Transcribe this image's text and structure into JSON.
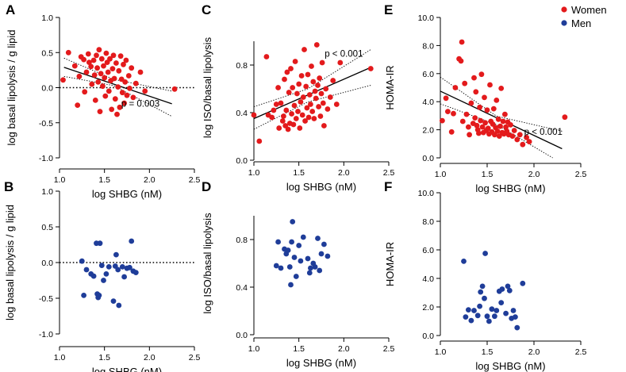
{
  "legend": {
    "items": [
      {
        "label": "Women",
        "color": "#e31a1c"
      },
      {
        "label": "Men",
        "color": "#1f3d99"
      }
    ],
    "position": "top-right"
  },
  "chart_data": [
    {
      "id": "A",
      "type": "scatter",
      "panel_label": "A",
      "series": "Women",
      "xlabel": "log SHBG (nM)",
      "ylabel": "log basal lipolysis / g lipid",
      "xlim": [
        1.0,
        2.5
      ],
      "ylim": [
        -1.0,
        1.0
      ],
      "xticks": [
        "1.0",
        "1.5",
        "2.0",
        "2.5"
      ],
      "yticks": [
        "-1.0",
        "-0.5",
        "0.0",
        "0.5",
        "1.0"
      ],
      "reference_line_y": 0.0,
      "regression": {
        "x1": 1.05,
        "y1": 0.29,
        "x2": 2.25,
        "y2": -0.23,
        "ci_upper": [
          [
            1.05,
            0.42
          ],
          [
            1.6,
            0.12
          ],
          [
            2.25,
            -0.05
          ]
        ],
        "ci_lower": [
          [
            1.05,
            0.16
          ],
          [
            1.6,
            0.03
          ],
          [
            2.25,
            -0.41
          ]
        ]
      },
      "annotation": {
        "text": "p = 0.003",
        "x": 1.9,
        "y": -0.27
      },
      "points": [
        [
          1.04,
          0.11
        ],
        [
          1.1,
          0.5
        ],
        [
          1.17,
          0.31
        ],
        [
          1.2,
          -0.25
        ],
        [
          1.22,
          0.16
        ],
        [
          1.24,
          0.44
        ],
        [
          1.27,
          0.4
        ],
        [
          1.28,
          -0.06
        ],
        [
          1.3,
          0.22
        ],
        [
          1.32,
          0.48
        ],
        [
          1.33,
          0.36
        ],
        [
          1.35,
          0.3
        ],
        [
          1.36,
          0.05
        ],
        [
          1.38,
          0.39
        ],
        [
          1.39,
          0.18
        ],
        [
          1.4,
          -0.18
        ],
        [
          1.41,
          0.46
        ],
        [
          1.42,
          0.28
        ],
        [
          1.43,
          0.08
        ],
        [
          1.44,
          0.54
        ],
        [
          1.45,
          -0.34
        ],
        [
          1.46,
          0.2
        ],
        [
          1.47,
          0.41
        ],
        [
          1.48,
          0.02
        ],
        [
          1.49,
          0.31
        ],
        [
          1.5,
          0.14
        ],
        [
          1.51,
          -0.12
        ],
        [
          1.52,
          0.49
        ],
        [
          1.53,
          0.36
        ],
        [
          1.54,
          0.22
        ],
        [
          1.55,
          -0.05
        ],
        [
          1.56,
          0.41
        ],
        [
          1.57,
          0.1
        ],
        [
          1.58,
          -0.31
        ],
        [
          1.59,
          0.27
        ],
        [
          1.6,
          0.46
        ],
        [
          1.61,
          0.13
        ],
        [
          1.62,
          -0.16
        ],
        [
          1.63,
          0.35
        ],
        [
          1.64,
          -0.38
        ],
        [
          1.65,
          0.01
        ],
        [
          1.66,
          0.24
        ],
        [
          1.67,
          -0.28
        ],
        [
          1.68,
          0.45
        ],
        [
          1.69,
          0.12
        ],
        [
          1.7,
          -0.07
        ],
        [
          1.71,
          0.33
        ],
        [
          1.72,
          -0.22
        ],
        [
          1.73,
          0.08
        ],
        [
          1.74,
          0.39
        ],
        [
          1.75,
          -0.11
        ],
        [
          1.77,
          0.17
        ],
        [
          1.78,
          -0.01
        ],
        [
          1.8,
          0.28
        ],
        [
          1.82,
          -0.14
        ],
        [
          1.85,
          0.06
        ],
        [
          1.9,
          0.22
        ],
        [
          1.95,
          -0.05
        ],
        [
          2.28,
          -0.02
        ]
      ]
    },
    {
      "id": "B",
      "type": "scatter",
      "panel_label": "B",
      "series": "Men",
      "xlabel": "log SHBG (nM)",
      "ylabel": "log basal lipolysis / g lipid",
      "xlim": [
        1.0,
        2.5
      ],
      "ylim": [
        -1.0,
        1.0
      ],
      "xticks": [
        "1.0",
        "1.5",
        "2.0",
        "2.5"
      ],
      "yticks": [
        "-1.0",
        "-0.5",
        "0.0",
        "0.5",
        "1.0"
      ],
      "reference_line_y": 0.0,
      "points": [
        [
          1.25,
          0.02
        ],
        [
          1.27,
          -0.46
        ],
        [
          1.3,
          -0.1
        ],
        [
          1.35,
          -0.16
        ],
        [
          1.38,
          -0.19
        ],
        [
          1.41,
          0.27
        ],
        [
          1.42,
          -0.44
        ],
        [
          1.43,
          -0.49
        ],
        [
          1.44,
          -0.46
        ],
        [
          1.45,
          0.27
        ],
        [
          1.47,
          -0.04
        ],
        [
          1.49,
          -0.25
        ],
        [
          1.52,
          -0.16
        ],
        [
          1.55,
          -0.06
        ],
        [
          1.6,
          -0.54
        ],
        [
          1.62,
          -0.05
        ],
        [
          1.63,
          0.11
        ],
        [
          1.65,
          -0.1
        ],
        [
          1.66,
          -0.6
        ],
        [
          1.7,
          -0.06
        ],
        [
          1.72,
          -0.2
        ],
        [
          1.75,
          -0.08
        ],
        [
          1.78,
          -0.07
        ],
        [
          1.8,
          0.3
        ],
        [
          1.82,
          -0.12
        ],
        [
          1.85,
          -0.14
        ]
      ]
    },
    {
      "id": "C",
      "type": "scatter",
      "panel_label": "C",
      "series": "Women",
      "xlabel": "log SHBG (nM)",
      "ylabel": "log ISO/basal lipolysis",
      "xlim": [
        1.0,
        2.5
      ],
      "ylim": [
        0.0,
        1.0
      ],
      "xticks": [
        "1.0",
        "1.5",
        "2.0",
        "2.5"
      ],
      "yticks": [
        "0.0",
        "0.4",
        "0.8"
      ],
      "regression": {
        "x1": 1.0,
        "y1": 0.35,
        "x2": 2.3,
        "y2": 0.78,
        "ci_upper": [
          [
            1.0,
            0.45
          ],
          [
            1.6,
            0.6
          ],
          [
            2.3,
            0.93
          ]
        ],
        "ci_lower": [
          [
            1.0,
            0.26
          ],
          [
            1.6,
            0.49
          ],
          [
            2.3,
            0.63
          ]
        ]
      },
      "annotation": {
        "text": "p < 0.001",
        "x": 2.0,
        "y": 0.87
      },
      "points": [
        [
          1.0,
          0.38
        ],
        [
          1.06,
          0.16
        ],
        [
          1.14,
          0.87
        ],
        [
          1.16,
          0.38
        ],
        [
          1.2,
          0.36
        ],
        [
          1.22,
          0.42
        ],
        [
          1.25,
          0.47
        ],
        [
          1.27,
          0.61
        ],
        [
          1.28,
          0.27
        ],
        [
          1.3,
          0.48
        ],
        [
          1.32,
          0.33
        ],
        [
          1.33,
          0.37
        ],
        [
          1.34,
          0.68
        ],
        [
          1.35,
          0.29
        ],
        [
          1.36,
          0.42
        ],
        [
          1.37,
          0.74
        ],
        [
          1.38,
          0.26
        ],
        [
          1.39,
          0.57
        ],
        [
          1.4,
          0.31
        ],
        [
          1.41,
          0.77
        ],
        [
          1.42,
          0.39
        ],
        [
          1.43,
          0.61
        ],
        [
          1.44,
          0.3
        ],
        [
          1.45,
          0.46
        ],
        [
          1.46,
          0.83
        ],
        [
          1.47,
          0.35
        ],
        [
          1.48,
          0.56
        ],
        [
          1.49,
          0.41
        ],
        [
          1.5,
          0.64
        ],
        [
          1.51,
          0.27
        ],
        [
          1.52,
          0.49
        ],
        [
          1.53,
          0.71
        ],
        [
          1.54,
          0.38
        ],
        [
          1.55,
          0.53
        ],
        [
          1.56,
          0.93
        ],
        [
          1.57,
          0.33
        ],
        [
          1.58,
          0.62
        ],
        [
          1.59,
          0.44
        ],
        [
          1.6,
          0.72
        ],
        [
          1.61,
          0.36
        ],
        [
          1.62,
          0.55
        ],
        [
          1.63,
          0.47
        ],
        [
          1.64,
          0.79
        ],
        [
          1.65,
          0.41
        ],
        [
          1.66,
          0.66
        ],
        [
          1.67,
          0.35
        ],
        [
          1.68,
          0.58
        ],
        [
          1.69,
          0.52
        ],
        [
          1.7,
          0.97
        ],
        [
          1.71,
          0.63
        ],
        [
          1.72,
          0.45
        ],
        [
          1.73,
          0.69
        ],
        [
          1.74,
          0.37
        ],
        [
          1.75,
          0.56
        ],
        [
          1.76,
          0.82
        ],
        [
          1.77,
          0.48
        ],
        [
          1.78,
          0.29
        ],
        [
          1.8,
          0.6
        ],
        [
          1.82,
          0.43
        ],
        [
          1.85,
          0.53
        ],
        [
          1.88,
          0.67
        ],
        [
          1.92,
          0.47
        ],
        [
          1.96,
          0.82
        ],
        [
          2.3,
          0.77
        ]
      ]
    },
    {
      "id": "D",
      "type": "scatter",
      "panel_label": "D",
      "series": "Men",
      "xlabel": "log SHBG (nM)",
      "ylabel": "log ISO/basal lipolysis",
      "xlim": [
        1.0,
        2.5
      ],
      "ylim": [
        0.0,
        1.0
      ],
      "xticks": [
        "1.0",
        "1.5",
        "2.0",
        "2.5"
      ],
      "yticks": [
        "0.0",
        "0.4",
        "0.8"
      ],
      "points": [
        [
          1.25,
          0.58
        ],
        [
          1.27,
          0.78
        ],
        [
          1.3,
          0.56
        ],
        [
          1.34,
          0.72
        ],
        [
          1.36,
          0.68
        ],
        [
          1.38,
          0.71
        ],
        [
          1.4,
          0.57
        ],
        [
          1.41,
          0.42
        ],
        [
          1.42,
          0.78
        ],
        [
          1.43,
          0.95
        ],
        [
          1.45,
          0.65
        ],
        [
          1.47,
          0.49
        ],
        [
          1.5,
          0.75
        ],
        [
          1.52,
          0.62
        ],
        [
          1.55,
          0.82
        ],
        [
          1.6,
          0.64
        ],
        [
          1.62,
          0.52
        ],
        [
          1.63,
          0.56
        ],
        [
          1.66,
          0.6
        ],
        [
          1.68,
          0.57
        ],
        [
          1.71,
          0.81
        ],
        [
          1.73,
          0.54
        ],
        [
          1.75,
          0.68
        ],
        [
          1.78,
          0.76
        ],
        [
          1.82,
          0.66
        ]
      ]
    },
    {
      "id": "E",
      "type": "scatter",
      "panel_label": "E",
      "series": "Women",
      "xlabel": "log SHBG (nM)",
      "ylabel": "HOMA-IR",
      "xlim": [
        1.0,
        2.5
      ],
      "ylim": [
        0.0,
        10.0
      ],
      "xticks": [
        "1.0",
        "1.5",
        "2.0",
        "2.5"
      ],
      "yticks": [
        "0.0",
        "2.0",
        "4.0",
        "6.0",
        "8.0",
        "10.0"
      ],
      "regression": {
        "x1": 1.0,
        "y1": 4.75,
        "x2": 2.3,
        "y2": 0.65,
        "ci_upper": [
          [
            1.0,
            5.75
          ],
          [
            1.6,
            2.97
          ],
          [
            2.3,
            1.9
          ]
        ],
        "ci_lower": [
          [
            1.0,
            3.85
          ],
          [
            1.6,
            2.37
          ],
          [
            2.2,
            0.0
          ]
        ]
      },
      "annotation": {
        "text": "p < 0.001",
        "x": 2.1,
        "y": 1.65
      },
      "points": [
        [
          1.02,
          2.65
        ],
        [
          1.06,
          4.25
        ],
        [
          1.08,
          3.3
        ],
        [
          1.12,
          1.85
        ],
        [
          1.14,
          3.15
        ],
        [
          1.16,
          5.0
        ],
        [
          1.2,
          7.05
        ],
        [
          1.22,
          6.9
        ],
        [
          1.23,
          8.25
        ],
        [
          1.24,
          2.6
        ],
        [
          1.26,
          5.3
        ],
        [
          1.28,
          3.1
        ],
        [
          1.3,
          2.2
        ],
        [
          1.31,
          1.65
        ],
        [
          1.33,
          3.9
        ],
        [
          1.35,
          2.45
        ],
        [
          1.36,
          5.7
        ],
        [
          1.37,
          2.85
        ],
        [
          1.38,
          4.7
        ],
        [
          1.39,
          2.3
        ],
        [
          1.4,
          2.0
        ],
        [
          1.41,
          1.75
        ],
        [
          1.42,
          3.6
        ],
        [
          1.43,
          2.65
        ],
        [
          1.44,
          5.95
        ],
        [
          1.45,
          2.2
        ],
        [
          1.46,
          1.8
        ],
        [
          1.47,
          4.3
        ],
        [
          1.48,
          2.5
        ],
        [
          1.49,
          1.95
        ],
        [
          1.5,
          3.4
        ],
        [
          1.51,
          2.1
        ],
        [
          1.52,
          1.7
        ],
        [
          1.53,
          5.2
        ],
        [
          1.54,
          2.6
        ],
        [
          1.55,
          1.85
        ],
        [
          1.56,
          2.4
        ],
        [
          1.57,
          3.5
        ],
        [
          1.58,
          1.65
        ],
        [
          1.59,
          2.15
        ],
        [
          1.6,
          4.1
        ],
        [
          1.61,
          1.9
        ],
        [
          1.62,
          2.75
        ],
        [
          1.63,
          1.55
        ],
        [
          1.64,
          2.25
        ],
        [
          1.65,
          4.95
        ],
        [
          1.66,
          1.8
        ],
        [
          1.67,
          2.6
        ],
        [
          1.68,
          1.7
        ],
        [
          1.69,
          3.1
        ],
        [
          1.7,
          2.2
        ],
        [
          1.71,
          1.9
        ],
        [
          1.72,
          2.55
        ],
        [
          1.73,
          1.65
        ],
        [
          1.75,
          2.35
        ],
        [
          1.77,
          1.55
        ],
        [
          1.79,
          1.95
        ],
        [
          1.82,
          1.3
        ],
        [
          1.85,
          1.65
        ],
        [
          1.88,
          0.95
        ],
        [
          1.92,
          1.45
        ],
        [
          1.95,
          1.15
        ],
        [
          2.33,
          2.9
        ]
      ]
    },
    {
      "id": "F",
      "type": "scatter",
      "panel_label": "F",
      "series": "Men",
      "xlabel": "log SHBG (nM)",
      "ylabel": "HOMA-IR",
      "xlim": [
        1.0,
        2.5
      ],
      "ylim": [
        0.0,
        10.0
      ],
      "xticks": [
        "1.0",
        "1.5",
        "2.0",
        "2.5"
      ],
      "yticks": [
        "0.0",
        "2.0",
        "4.0",
        "6.0",
        "8.0",
        "10.0"
      ],
      "points": [
        [
          1.25,
          5.2
        ],
        [
          1.27,
          1.3
        ],
        [
          1.3,
          1.8
        ],
        [
          1.33,
          1.05
        ],
        [
          1.36,
          1.75
        ],
        [
          1.4,
          1.4
        ],
        [
          1.42,
          2.05
        ],
        [
          1.43,
          3.05
        ],
        [
          1.45,
          3.45
        ],
        [
          1.47,
          2.6
        ],
        [
          1.48,
          5.75
        ],
        [
          1.5,
          1.35
        ],
        [
          1.52,
          1.0
        ],
        [
          1.55,
          1.85
        ],
        [
          1.58,
          1.35
        ],
        [
          1.6,
          1.75
        ],
        [
          1.63,
          3.1
        ],
        [
          1.65,
          2.3
        ],
        [
          1.66,
          3.25
        ],
        [
          1.7,
          1.55
        ],
        [
          1.72,
          3.45
        ],
        [
          1.74,
          3.15
        ],
        [
          1.76,
          1.2
        ],
        [
          1.78,
          1.75
        ],
        [
          1.8,
          1.3
        ],
        [
          1.82,
          0.55
        ],
        [
          1.88,
          3.65
        ]
      ]
    }
  ]
}
